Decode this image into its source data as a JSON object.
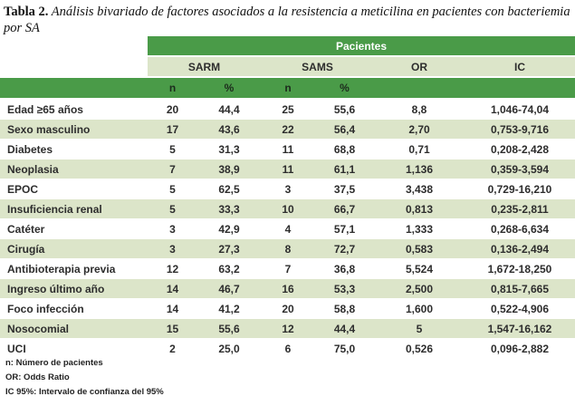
{
  "title": {
    "label": "Tabla 2.",
    "text": " Análisis bivariado de factores asociados a la resistencia a meticilina en pacientes con bacteriemia por SA"
  },
  "table": {
    "group_header": "Pacientes",
    "col_groups": {
      "sarm": "SARM",
      "sams": "SAMS",
      "or": "OR",
      "ic": "IC"
    },
    "sub_headers": {
      "sarm_n": "n",
      "sarm_pct": "%",
      "sams_n": "n",
      "sams_pct": "%"
    },
    "rows": [
      {
        "label": "Edad ≥65 años",
        "sarm_n": "20",
        "sarm_pct": "44,4",
        "sams_n": "25",
        "sams_pct": "55,6",
        "or": "8,8",
        "ic": "1,046-74,04"
      },
      {
        "label": "Sexo masculino",
        "sarm_n": "17",
        "sarm_pct": "43,6",
        "sams_n": "22",
        "sams_pct": "56,4",
        "or": "2,70",
        "ic": "0,753-9,716"
      },
      {
        "label": "Diabetes",
        "sarm_n": "5",
        "sarm_pct": "31,3",
        "sams_n": "11",
        "sams_pct": "68,8",
        "or": "0,71",
        "ic": "0,208-2,428"
      },
      {
        "label": "Neoplasia",
        "sarm_n": "7",
        "sarm_pct": "38,9",
        "sams_n": "11",
        "sams_pct": "61,1",
        "or": "1,136",
        "ic": "0,359-3,594"
      },
      {
        "label": "EPOC",
        "sarm_n": "5",
        "sarm_pct": "62,5",
        "sams_n": "3",
        "sams_pct": "37,5",
        "or": "3,438",
        "ic": "0,729-16,210"
      },
      {
        "label": "Insuficiencia renal",
        "sarm_n": "5",
        "sarm_pct": "33,3",
        "sams_n": "10",
        "sams_pct": "66,7",
        "or": "0,813",
        "ic": "0,235-2,811"
      },
      {
        "label": "Catéter",
        "sarm_n": "3",
        "sarm_pct": "42,9",
        "sams_n": "4",
        "sams_pct": "57,1",
        "or": "1,333",
        "ic": "0,268-6,634"
      },
      {
        "label": "Cirugía",
        "sarm_n": "3",
        "sarm_pct": "27,3",
        "sams_n": "8",
        "sams_pct": "72,7",
        "or": "0,583",
        "ic": "0,136-2,494"
      },
      {
        "label": "Antibioterapia previa",
        "sarm_n": "12",
        "sarm_pct": "63,2",
        "sams_n": "7",
        "sams_pct": "36,8",
        "or": "5,524",
        "ic": "1,672-18,250"
      },
      {
        "label": "Ingreso último año",
        "sarm_n": "14",
        "sarm_pct": "46,7",
        "sams_n": "16",
        "sams_pct": "53,3",
        "or": "2,500",
        "ic": "0,815-7,665"
      },
      {
        "label": "Foco infección",
        "sarm_n": "14",
        "sarm_pct": "41,2",
        "sams_n": "20",
        "sams_pct": "58,8",
        "or": "1,600",
        "ic": "0,522-4,906"
      },
      {
        "label": "Nosocomial",
        "sarm_n": "15",
        "sarm_pct": "55,6",
        "sams_n": "12",
        "sams_pct": "44,4",
        "or": "5",
        "ic": "1,547-16,162"
      },
      {
        "label": "UCI",
        "sarm_n": "2",
        "sarm_pct": "25,0",
        "sams_n": "6",
        "sams_pct": "75,0",
        "or": "0,526",
        "ic": "0,096-2,882"
      }
    ]
  },
  "notes": [
    "n: Número de pacientes",
    "OR: Odds Ratio",
    "IC 95%: Intervalo de confianza del 95%"
  ],
  "colors": {
    "dark_green": "#4a9b48",
    "light_green": "#dce5c9",
    "text": "#2d2d2d"
  }
}
